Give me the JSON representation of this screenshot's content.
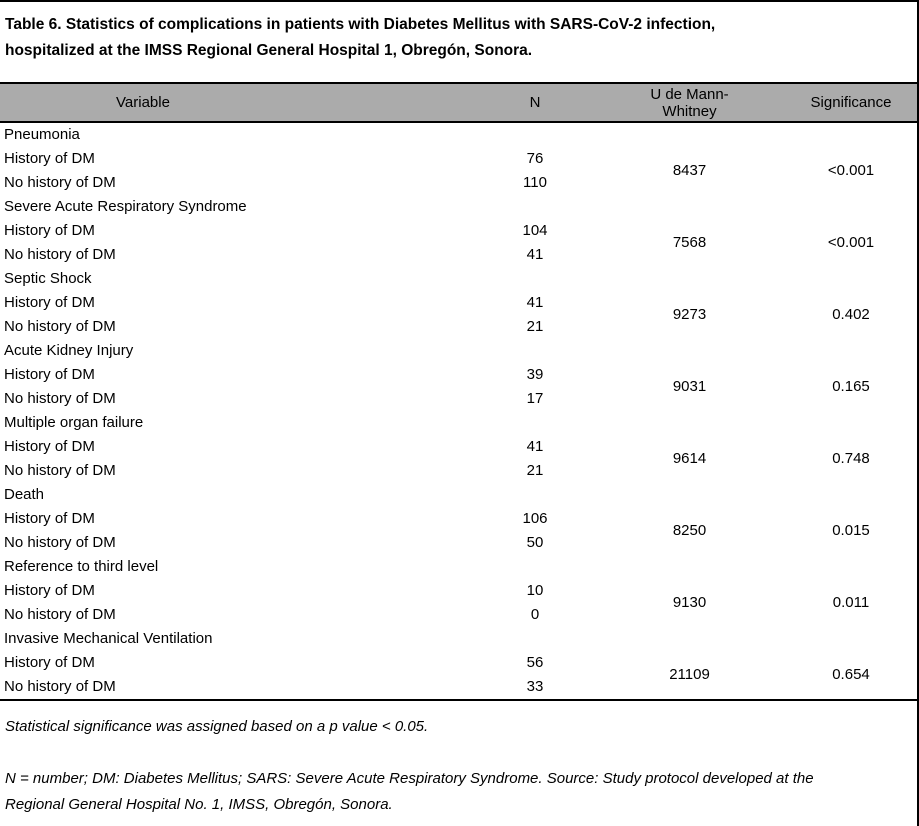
{
  "title": "Table 6. Statistics of complications in patients with Diabetes Mellitus with SARS-CoV-2 infection, hospitalized at the IMSS Regional General Hospital 1, Obregón, Sonora.",
  "table": {
    "headers": {
      "variable": "Variable",
      "n": "N",
      "u": "U de Mann-Whitney",
      "significance": "Significance"
    },
    "row_labels": {
      "history": "History of DM",
      "no_history": "No history of DM"
    },
    "groups": [
      {
        "variable": "Pneumonia",
        "n_history": "76",
        "n_no_history": "110",
        "u": "8437",
        "significance": "<0.001"
      },
      {
        "variable": "Severe Acute Respiratory Syndrome",
        "n_history": "104",
        "n_no_history": "41",
        "u": "7568",
        "significance": "<0.001"
      },
      {
        "variable": "Septic Shock",
        "n_history": "41",
        "n_no_history": "21",
        "u": "9273",
        "significance": "0.402"
      },
      {
        "variable": "Acute Kidney Injury",
        "n_history": "39",
        "n_no_history": "17",
        "u": "9031",
        "significance": "0.165"
      },
      {
        "variable": "Multiple organ failure",
        "n_history": "41",
        "n_no_history": "21",
        "u": "9614",
        "significance": "0.748"
      },
      {
        "variable": "Death",
        "n_history": "106",
        "n_no_history": "50",
        "u": "8250",
        "significance": "0.015"
      },
      {
        "variable": "Reference to third level",
        "n_history": "10",
        "n_no_history": "0",
        "u": "9130",
        "significance": "0.011"
      },
      {
        "variable": "Invasive Mechanical Ventilation",
        "n_history": "56",
        "n_no_history": "33",
        "u": "21109",
        "significance": "0.654"
      }
    ]
  },
  "notes": {
    "significance_note": "Statistical significance was assigned based on a p value < 0.05.",
    "abbreviations_note": "N = number; DM: Diabetes Mellitus; SARS: Severe Acute Respiratory Syndrome. Source: Study protocol developed at the Regional General Hospital No. 1, IMSS, Obregón, Sonora."
  },
  "colors": {
    "header_bg": "#ababab",
    "border": "#000000",
    "background": "#ffffff"
  }
}
